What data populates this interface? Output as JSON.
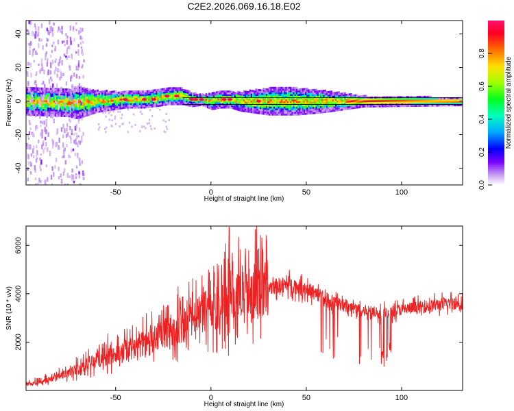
{
  "figure_title": "C2E2.2026.069.16.18.E02",
  "colors": {
    "snr_line": "#ee2222",
    "background": "#ffffff",
    "axis": "#000000"
  },
  "chart_data": [
    {
      "type": "heatmap",
      "name": "spectrogram",
      "title": "C2E2.2026.069.16.18.E02",
      "xlabel": "Height of straight line (km)",
      "ylabel": "Frequency (Hz)",
      "xlim": [
        -97,
        132
      ],
      "ylim": [
        -50,
        48
      ],
      "xticks": [
        -50,
        0,
        50,
        100
      ],
      "xtick_labels": [
        "-50",
        "0",
        "50",
        "100"
      ],
      "yticks": [
        -40,
        -20,
        0,
        20,
        40
      ],
      "ytick_labels": [
        "-40",
        "-20",
        "0",
        "20",
        "40"
      ],
      "colorbar": {
        "label": "Normalized spectral amplitude",
        "range": [
          0,
          1
        ],
        "ticks": [
          0.0,
          0.2,
          0.4,
          0.6,
          0.8
        ],
        "tick_labels": [
          "0.0",
          "0.2",
          "0.4",
          "0.6",
          "0.8"
        ],
        "colormap": [
          "#ffffff",
          "#c8a0f0",
          "#7a00ff",
          "#0000ff",
          "#00c8ff",
          "#00ff80",
          "#40ff00",
          "#c8ff00",
          "#ffc800",
          "#ff6000",
          "#ff0040",
          "#ff0080"
        ]
      },
      "centerline_path": [
        [
          -97,
          0
        ],
        [
          -75,
          -1
        ],
        [
          -60,
          0
        ],
        [
          -45,
          1
        ],
        [
          -35,
          1
        ],
        [
          -28,
          2
        ],
        [
          -22,
          3
        ],
        [
          -15,
          3
        ],
        [
          -10,
          1
        ],
        [
          -5,
          1
        ],
        [
          0,
          0
        ],
        [
          5,
          1
        ],
        [
          10,
          1
        ],
        [
          15,
          0
        ],
        [
          25,
          0
        ],
        [
          40,
          0
        ],
        [
          60,
          0
        ],
        [
          90,
          0
        ],
        [
          132,
          0
        ]
      ],
      "half_width_path": [
        [
          -97,
          5
        ],
        [
          -75,
          5
        ],
        [
          -70,
          6
        ],
        [
          -60,
          4
        ],
        [
          -45,
          3
        ],
        [
          -30,
          3
        ],
        [
          -15,
          3
        ],
        [
          -5,
          2
        ],
        [
          0,
          3
        ],
        [
          10,
          3
        ],
        [
          20,
          4
        ],
        [
          30,
          5
        ],
        [
          45,
          5
        ],
        [
          60,
          4
        ],
        [
          70,
          3
        ],
        [
          80,
          2
        ],
        [
          132,
          1.5
        ]
      ],
      "scatter_region": [
        -97,
        -67
      ],
      "hot_spots": [
        [
          -45,
          1
        ],
        [
          -35,
          1
        ],
        [
          -30,
          1
        ],
        [
          -23,
          3
        ],
        [
          -18,
          3
        ],
        [
          -10,
          1
        ],
        [
          -8,
          1
        ],
        [
          -5,
          1
        ],
        [
          7,
          1
        ],
        [
          10,
          1
        ],
        [
          25,
          0
        ]
      ],
      "guide_lines": [
        2,
        -2
      ]
    },
    {
      "type": "line",
      "name": "snr",
      "xlabel": "Height of straight line (km)",
      "ylabel": "SNR (10 * v/v)",
      "xlim": [
        -97,
        132
      ],
      "ylim": [
        0,
        6800
      ],
      "xticks": [
        -50,
        0,
        50,
        100
      ],
      "xtick_labels": [
        "-50",
        "0",
        "50",
        "100"
      ],
      "yticks": [
        2000,
        4000,
        6000
      ],
      "ytick_labels": [
        "2000",
        "4000",
        "6000"
      ],
      "baseline_envelope": [
        [
          -97,
          250
        ],
        [
          -90,
          350
        ],
        [
          -80,
          550
        ],
        [
          -70,
          900
        ],
        [
          -60,
          1250
        ],
        [
          -50,
          1500
        ],
        [
          -40,
          1800
        ],
        [
          -30,
          2100
        ],
        [
          -20,
          2500
        ],
        [
          -10,
          2900
        ],
        [
          0,
          3300
        ],
        [
          10,
          3700
        ],
        [
          20,
          4000
        ],
        [
          30,
          4250
        ],
        [
          40,
          4400
        ],
        [
          50,
          4200
        ],
        [
          60,
          3800
        ],
        [
          70,
          3500
        ],
        [
          80,
          3300
        ],
        [
          90,
          3200
        ],
        [
          100,
          3350
        ],
        [
          110,
          3450
        ],
        [
          120,
          3550
        ],
        [
          132,
          3650
        ]
      ],
      "peak_spike": [
        9.5,
        6750
      ],
      "dip_band": [
        55,
        95
      ],
      "deep_dip": [
        [
          90,
          1300
        ],
        [
          92,
          1200
        ],
        [
          94,
          1500
        ]
      ]
    }
  ]
}
